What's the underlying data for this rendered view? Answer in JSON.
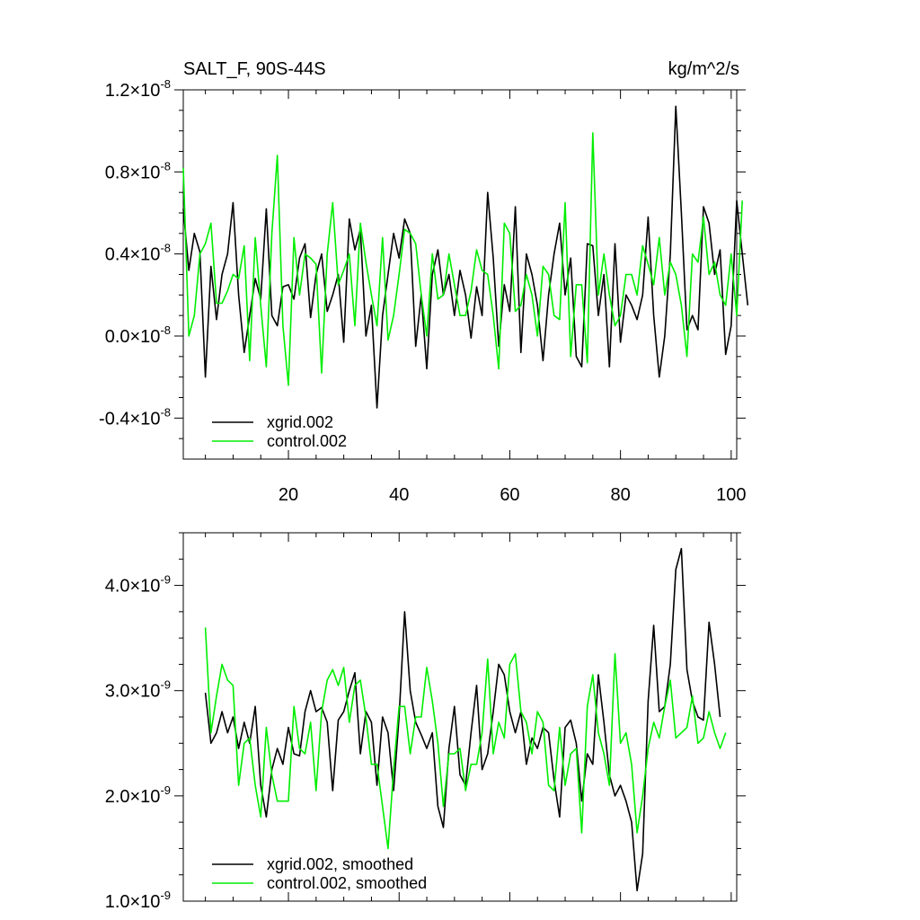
{
  "chart_data": [
    {
      "type": "line",
      "title": "SALT_F, 90S-44S",
      "units": "kg/m^2/s",
      "xlim": [
        1,
        101
      ],
      "ylim": [
        -0.6,
        1.2
      ],
      "y_exponent": "-8",
      "x_ticks": [
        20,
        40,
        60,
        80,
        100
      ],
      "y_ticks": [
        {
          "value": 1.2,
          "label": "1.2"
        },
        {
          "value": 0.8,
          "label": "0.8"
        },
        {
          "value": 0.4,
          "label": "0.4"
        },
        {
          "value": 0.0,
          "label": "0.0"
        },
        {
          "value": -0.4,
          "label": "-0.4"
        }
      ],
      "legend_placement": "bottom-left",
      "series": [
        {
          "name": "xgrid.002",
          "color": "#000000",
          "x_start": 1,
          "values": [
            0.62,
            0.32,
            0.5,
            0.41,
            -0.2,
            0.34,
            0.08,
            0.3,
            0.4,
            0.65,
            0.2,
            -0.08,
            0.1,
            0.28,
            0.18,
            0.62,
            0.1,
            0.05,
            0.24,
            0.25,
            0.18,
            0.38,
            0.45,
            0.09,
            0.3,
            0.4,
            0.12,
            0.2,
            0.3,
            -0.03,
            0.57,
            0.42,
            0.52,
            0.0,
            0.15,
            -0.35,
            0.1,
            0.3,
            0.5,
            0.38,
            0.57,
            0.5,
            -0.05,
            0.2,
            -0.16,
            0.3,
            0.42,
            0.2,
            0.3,
            0.1,
            0.32,
            0.2,
            -0.01,
            0.24,
            0.1,
            0.7,
            0.38,
            -0.05,
            0.25,
            0.12,
            0.63,
            -0.08,
            0.4,
            0.3,
            0.15,
            -0.12,
            0.2,
            0.4,
            0.55,
            0.2,
            0.38,
            -0.1,
            -0.15,
            0.45,
            0.44,
            0.1,
            0.3,
            -0.15,
            0.45,
            -0.03,
            0.2,
            0.15,
            0.08,
            0.2,
            0.58,
            0.1,
            -0.2,
            0.0,
            0.4,
            1.12,
            0.6,
            0.03,
            0.1,
            0.03,
            0.63,
            0.55,
            0.3,
            0.42,
            -0.09,
            0.05,
            0.66,
            0.4,
            0.15
          ]
        },
        {
          "name": "control.002",
          "color": "#00ee00",
          "x_start": 1,
          "values": [
            0.82,
            0.0,
            0.1,
            0.4,
            0.45,
            0.55,
            0.16,
            0.16,
            0.22,
            0.3,
            0.28,
            0.44,
            -0.12,
            0.48,
            0.15,
            -0.15,
            0.5,
            0.88,
            0.05,
            -0.24,
            0.48,
            0.2,
            0.4,
            0.38,
            0.35,
            -0.18,
            0.4,
            0.65,
            0.25,
            0.32,
            0.4,
            0.05,
            0.55,
            0.36,
            0.2,
            0.05,
            0.48,
            -0.02,
            0.1,
            0.3,
            0.52,
            0.5,
            0.45,
            0.2,
            0.0,
            0.4,
            0.18,
            0.2,
            0.4,
            0.25,
            0.1,
            0.1,
            0.22,
            0.42,
            0.32,
            0.3,
            0.1,
            -0.16,
            0.55,
            0.5,
            0.12,
            0.15,
            0.3,
            0.2,
            0.0,
            0.34,
            0.3,
            0.1,
            0.08,
            0.65,
            -0.1,
            0.25,
            0.25,
            -0.13,
            0.99,
            0.2,
            0.4,
            0.2,
            0.05,
            0.1,
            0.3,
            0.3,
            0.2,
            0.44,
            0.35,
            0.25,
            0.48,
            0.2,
            0.36,
            0.3,
            0.15,
            -0.1,
            0.4,
            0.36,
            0.58,
            0.3,
            0.36,
            0.2,
            0.15,
            0.4,
            0.1,
            0.66
          ]
        }
      ]
    },
    {
      "type": "line",
      "xlim": [
        1,
        101
      ],
      "ylim": [
        1.0,
        4.5
      ],
      "y_exponent": "-9",
      "y_ticks": [
        {
          "value": 4.0,
          "label": "4.0"
        },
        {
          "value": 3.0,
          "label": "3.0"
        },
        {
          "value": 2.0,
          "label": "2.0"
        },
        {
          "value": 1.0,
          "label": "1.0"
        }
      ],
      "legend_placement": "bottom-left",
      "series": [
        {
          "name": "xgrid.002, smoothed",
          "color": "#000000",
          "x_start": 5,
          "values": [
            2.98,
            2.5,
            2.6,
            2.8,
            2.6,
            2.75,
            2.45,
            2.7,
            2.5,
            2.85,
            2.1,
            1.8,
            2.25,
            2.45,
            2.3,
            2.65,
            2.4,
            2.38,
            2.8,
            3.0,
            2.8,
            2.84,
            2.7,
            2.05,
            2.72,
            2.8,
            3.0,
            3.17,
            2.4,
            2.8,
            2.7,
            2.1,
            2.75,
            2.6,
            2.05,
            2.75,
            3.75,
            3.0,
            2.7,
            2.58,
            2.45,
            2.6,
            1.9,
            1.7,
            2.45,
            2.85,
            2.2,
            2.1,
            2.6,
            3.05,
            2.25,
            2.4,
            2.8,
            3.25,
            3.15,
            2.8,
            2.6,
            2.8,
            2.3,
            2.55,
            2.45,
            2.65,
            2.6,
            2.15,
            1.8,
            2.65,
            2.72,
            2.5,
            1.95,
            2.4,
            2.3,
            3.15,
            2.7,
            2.2,
            2.0,
            2.1,
            1.95,
            1.75,
            1.1,
            1.45,
            2.9,
            3.62,
            2.8,
            2.85,
            3.25,
            4.15,
            4.35,
            3.2,
            2.9,
            2.75,
            2.72,
            3.65,
            3.25,
            2.75
          ]
        },
        {
          "name": "control.002, smoothed",
          "color": "#00ee00",
          "x_start": 5,
          "values": [
            3.6,
            2.6,
            2.95,
            3.25,
            3.1,
            3.05,
            2.1,
            2.5,
            2.55,
            2.1,
            1.8,
            2.65,
            2.2,
            1.95,
            1.95,
            1.95,
            2.85,
            2.45,
            2.4,
            2.7,
            2.05,
            2.8,
            3.1,
            3.2,
            3.05,
            3.22,
            2.7,
            3.05,
            3.1,
            2.75,
            2.3,
            2.3,
            1.9,
            1.5,
            2.25,
            2.85,
            2.85,
            2.4,
            2.75,
            2.75,
            3.22,
            2.9,
            2.5,
            1.9,
            2.4,
            2.4,
            2.45,
            2.05,
            2.3,
            2.3,
            2.6,
            3.3,
            2.4,
            2.7,
            2.55,
            3.25,
            3.35,
            2.8,
            2.7,
            2.4,
            2.8,
            2.7,
            2.1,
            2.05,
            2.65,
            2.1,
            2.4,
            2.45,
            1.65,
            2.85,
            3.15,
            2.6,
            2.4,
            2.1,
            3.35,
            2.5,
            2.6,
            2.3,
            1.65,
            2.0,
            2.45,
            2.7,
            2.55,
            2.85,
            3.1,
            2.55,
            2.6,
            2.65,
            2.95,
            2.5,
            2.55,
            2.8,
            2.6,
            2.45,
            2.6
          ]
        }
      ]
    }
  ]
}
